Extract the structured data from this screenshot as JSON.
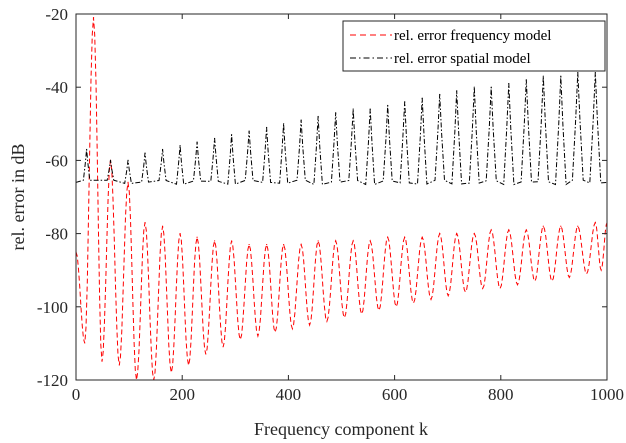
{
  "chart_data": {
    "type": "line",
    "xlabel": "Frequency component k",
    "ylabel": "rel. error in dB",
    "xlim": [
      0,
      1000
    ],
    "ylim": [
      -120,
      -20
    ],
    "xticks": [
      "0",
      "200",
      "400",
      "600",
      "800",
      "1000"
    ],
    "yticks": [
      "-20",
      "-40",
      "-60",
      "-80",
      "-100",
      "-120"
    ],
    "grid": false,
    "legend_position": "top-right",
    "series": [
      {
        "name": "rel. error frequency model",
        "color": "#ff0000",
        "dash": "dashed",
        "peaks_k": [
          0,
          33,
          65,
          98,
          130,
          163,
          196,
          228,
          261,
          293,
          326,
          359,
          391,
          424,
          456,
          489,
          522,
          554,
          587,
          619,
          652,
          685,
          717,
          750,
          782,
          815,
          848,
          880,
          913,
          945,
          978
        ],
        "peaks_db": [
          -85,
          -21,
          -60,
          -66,
          -77,
          -78,
          -80,
          -81,
          -82,
          -82,
          -83,
          -83,
          -83,
          -83,
          -82,
          -82,
          -82,
          -82,
          -81,
          -81,
          -81,
          -80,
          -80,
          -80,
          -79,
          -79,
          -79,
          -78,
          -78,
          -78,
          -77
        ],
        "minima_db": [
          -110,
          -115,
          -116,
          -120,
          -120,
          -118,
          -116,
          -113,
          -111,
          -109,
          -108,
          -107,
          -106,
          -105,
          -104,
          -103,
          -102,
          -101,
          -100,
          -99,
          -98,
          -97,
          -96,
          -95,
          -95,
          -94,
          -93,
          -93,
          -92,
          -91,
          -90
        ]
      },
      {
        "name": "rel. error spatial model",
        "color": "#000000",
        "dash": "dash-dot",
        "peaks_k": [
          20,
          65,
          98,
          130,
          163,
          196,
          228,
          261,
          293,
          326,
          359,
          391,
          424,
          456,
          489,
          522,
          554,
          587,
          619,
          652,
          685,
          717,
          750,
          782,
          815,
          848,
          880,
          913,
          945,
          978
        ],
        "peaks_db": [
          -57,
          -60,
          -60,
          -58,
          -57,
          -56,
          -55,
          -54,
          -53,
          -52,
          -51,
          -50,
          -49,
          -48,
          -47,
          -46,
          -46,
          -45,
          -44,
          -43,
          -42,
          -41,
          -40,
          -40,
          -39,
          -38,
          -37,
          -37,
          -36,
          -36
        ],
        "baseline_db": -66
      }
    ]
  }
}
